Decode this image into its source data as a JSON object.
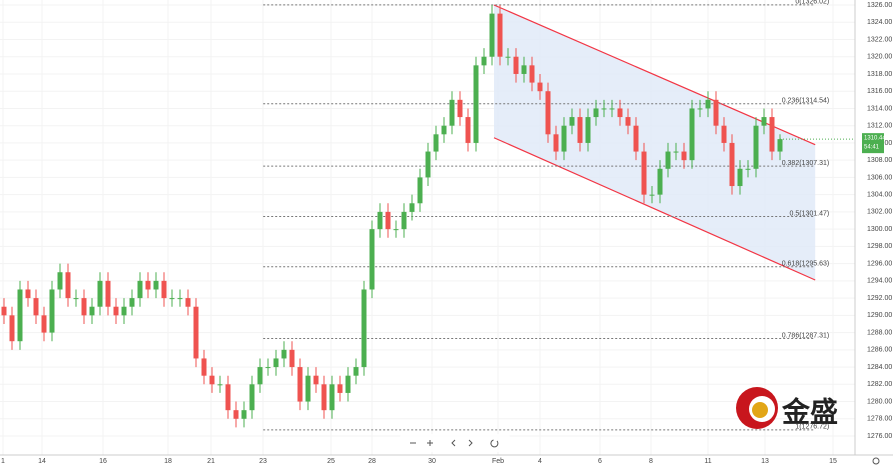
{
  "chart_data": {
    "type": "candlestick",
    "x": [
      0,
      1,
      2,
      3,
      4,
      5,
      6,
      7,
      8,
      9,
      10,
      11,
      12,
      13,
      14,
      15,
      16,
      17,
      18,
      19,
      20,
      21,
      22,
      23,
      24,
      25,
      26,
      27,
      28,
      29,
      30,
      31,
      32,
      33,
      34,
      35,
      36,
      37,
      38,
      39,
      40,
      41,
      42,
      43,
      44,
      45,
      46,
      47,
      48,
      49,
      50,
      51,
      52,
      53,
      54,
      55,
      56,
      57,
      58,
      59,
      60,
      61,
      62,
      63,
      64,
      65,
      66,
      67,
      68,
      69,
      70,
      71,
      72,
      73,
      74,
      75,
      76,
      77,
      78,
      79,
      80,
      81,
      82,
      83,
      84,
      85,
      86,
      87,
      88,
      89,
      90,
      91,
      92,
      93,
      94,
      95,
      96,
      97
    ],
    "open": [
      1291,
      1290,
      1287,
      1293,
      1292,
      1290,
      1288,
      1293,
      1295,
      1292,
      1292,
      1290,
      1291,
      1294,
      1291,
      1290,
      1291,
      1292,
      1294,
      1293,
      1294,
      1292,
      1292,
      1292,
      1291,
      1285,
      1283,
      1282,
      1282,
      1279,
      1278,
      1279,
      1282,
      1284,
      1284,
      1285,
      1286,
      1284,
      1280,
      1283,
      1282,
      1279,
      1282,
      1281,
      1283,
      1284,
      1293,
      1300,
      1302,
      1300,
      1300,
      1302,
      1303,
      1306,
      1309,
      1311,
      1312,
      1315,
      1313,
      1310,
      1319,
      1320,
      1325,
      1320,
      1320,
      1318,
      1319,
      1317,
      1316,
      1311,
      1309,
      1312,
      1313,
      1310,
      1313,
      1314,
      1314,
      1314,
      1313,
      1312,
      1309,
      1304,
      1304,
      1307,
      1309,
      1309,
      1308,
      1314,
      1314,
      1315,
      1312,
      1310,
      1305,
      1307,
      1307,
      1312,
      1313,
      1309
    ],
    "high": [
      1292,
      1291,
      1294,
      1294,
      1293,
      1291,
      1294,
      1296,
      1296,
      1293,
      1293,
      1292,
      1295,
      1295,
      1292,
      1292,
      1293,
      1295,
      1295,
      1295,
      1295,
      1293,
      1293,
      1293,
      1292,
      1286,
      1284,
      1283,
      1283,
      1280,
      1280,
      1283,
      1285,
      1285,
      1286,
      1287,
      1287,
      1285,
      1284,
      1284,
      1283,
      1283,
      1283,
      1284,
      1285,
      1294,
      1301,
      1303,
      1303,
      1301,
      1303,
      1304,
      1307,
      1310,
      1312,
      1313,
      1316,
      1316,
      1314,
      1320,
      1321,
      1326,
      1326,
      1321,
      1321,
      1320,
      1320,
      1318,
      1317,
      1312,
      1313,
      1314,
      1314,
      1314,
      1315,
      1315,
      1315,
      1315,
      1314,
      1313,
      1310,
      1305,
      1308,
      1310,
      1310,
      1310,
      1315,
      1315,
      1316,
      1316,
      1313,
      1311,
      1308,
      1308,
      1313,
      1314,
      1314,
      1311
    ],
    "low": [
      1289,
      1286,
      1286,
      1291,
      1289,
      1287,
      1287,
      1292,
      1291,
      1291,
      1289,
      1289,
      1290,
      1290,
      1289,
      1289,
      1290,
      1291,
      1292,
      1292,
      1291,
      1291,
      1291,
      1290,
      1284,
      1282,
      1281,
      1281,
      1278,
      1277,
      1277,
      1278,
      1281,
      1283,
      1283,
      1284,
      1283,
      1279,
      1279,
      1281,
      1278,
      1278,
      1280,
      1280,
      1282,
      1283,
      1292,
      1299,
      1299,
      1299,
      1299,
      1301,
      1302,
      1305,
      1308,
      1310,
      1311,
      1312,
      1309,
      1309,
      1318,
      1319,
      1319,
      1319,
      1317,
      1317,
      1316,
      1315,
      1310,
      1308,
      1308,
      1311,
      1309,
      1309,
      1312,
      1313,
      1313,
      1312,
      1311,
      1308,
      1303,
      1303,
      1303,
      1306,
      1308,
      1307,
      1307,
      1313,
      1313,
      1311,
      1309,
      1304,
      1304,
      1306,
      1306,
      1311,
      1308,
      1308
    ],
    "close": [
      1290,
      1287,
      1293,
      1292,
      1290,
      1288,
      1293,
      1295,
      1292,
      1292,
      1290,
      1291,
      1294,
      1291,
      1290,
      1291,
      1292,
      1294,
      1293,
      1294,
      1292,
      1292,
      1292,
      1291,
      1285,
      1283,
      1282,
      1282,
      1279,
      1278,
      1279,
      1282,
      1284,
      1284,
      1285,
      1286,
      1284,
      1280,
      1283,
      1282,
      1279,
      1282,
      1281,
      1283,
      1284,
      1293,
      1300,
      1302,
      1300,
      1300,
      1302,
      1303,
      1306,
      1309,
      1311,
      1312,
      1315,
      1313,
      1310,
      1319,
      1320,
      1325,
      1320,
      1320,
      1318,
      1319,
      1317,
      1316,
      1311,
      1309,
      1312,
      1313,
      1310,
      1313,
      1314,
      1314,
      1314,
      1313,
      1312,
      1309,
      1304,
      1304,
      1307,
      1309,
      1309,
      1308,
      1314,
      1314,
      1315,
      1312,
      1310,
      1305,
      1307,
      1307,
      1312,
      1313,
      1309,
      1310.44
    ],
    "up_color": "#4caf50",
    "down_color": "#ef5350",
    "xlim": [
      -0.5,
      106.375
    ],
    "ylim": [
      1273.8,
      1326.58
    ],
    "xticks": [
      {
        "value": -0.125,
        "label": "1"
      },
      {
        "value": 4.75,
        "label": "14"
      },
      {
        "value": 12.375,
        "label": "16"
      },
      {
        "value": 20.5,
        "label": "18"
      },
      {
        "value": 25.875,
        "label": "21"
      },
      {
        "value": 32.375,
        "label": "23"
      },
      {
        "value": 40.875,
        "label": "25"
      },
      {
        "value": 46,
        "label": "28"
      },
      {
        "value": 53.5,
        "label": "30"
      },
      {
        "value": 61.75,
        "label": "Feb"
      },
      {
        "value": 67,
        "label": "4"
      },
      {
        "value": 74.5,
        "label": "6"
      },
      {
        "value": 80.875,
        "label": "8"
      },
      {
        "value": 88,
        "label": "11"
      },
      {
        "value": 95.125,
        "label": "13"
      },
      {
        "value": 103.625,
        "label": "15"
      }
    ],
    "yticks": [
      {
        "value": 1276,
        "label": "1276.00"
      },
      {
        "value": 1278,
        "label": "1278.00"
      },
      {
        "value": 1280,
        "label": "1280.00"
      },
      {
        "value": 1282,
        "label": "1282.00"
      },
      {
        "value": 1284,
        "label": "1284.00"
      },
      {
        "value": 1286,
        "label": "1286.00"
      },
      {
        "value": 1288,
        "label": "1288.00"
      },
      {
        "value": 1290,
        "label": "1290.00"
      },
      {
        "value": 1292,
        "label": "1292.00"
      },
      {
        "value": 1294,
        "label": "1294.00"
      },
      {
        "value": 1296,
        "label": "1296.00"
      },
      {
        "value": 1298,
        "label": "1298.00"
      },
      {
        "value": 1300,
        "label": "1300.00"
      },
      {
        "value": 1302,
        "label": "1302.00"
      },
      {
        "value": 1304,
        "label": "1304.00"
      },
      {
        "value": 1306,
        "label": "1306.00"
      },
      {
        "value": 1308,
        "label": "1308.00"
      },
      {
        "value": 1310,
        "label": "1310.00"
      },
      {
        "value": 1312,
        "label": "1312.00"
      },
      {
        "value": 1314,
        "label": "1314.00"
      },
      {
        "value": 1316,
        "label": "1316.00"
      },
      {
        "value": 1318,
        "label": "1318.00"
      },
      {
        "value": 1320,
        "label": "1320.00"
      },
      {
        "value": 1322,
        "label": "1322.00"
      },
      {
        "value": 1324,
        "label": "1324.00"
      },
      {
        "value": 1326,
        "label": "1326.00"
      }
    ],
    "grid": true,
    "fib_x": [
      32.4,
      101.4
    ],
    "fib_levels": [
      {
        "value": 1326.02,
        "label": "0(1326.02)"
      },
      {
        "value": 1314.54,
        "label": "0.236(1314.54)"
      },
      {
        "value": 1307.31,
        "label": "0.382(1307.31)"
      },
      {
        "value": 1301.47,
        "label": "0.5(1301.47)"
      },
      {
        "value": 1295.63,
        "label": "0.618(1295.63)"
      },
      {
        "value": 1287.31,
        "label": "0.786(1287.31)"
      },
      {
        "value": 1276.72,
        "label": "1(1276.72)"
      }
    ],
    "channel": {
      "x": [
        61.25,
        101.4
      ],
      "upper": [
        1326.0,
        1309.8
      ],
      "lower": [
        1310.6,
        1294.1
      ],
      "color": "#f23645",
      "fill": "#dfe9f7"
    },
    "last_price_label": "1310.44",
    "countdown": "54:41",
    "watermark": "金盛"
  }
}
